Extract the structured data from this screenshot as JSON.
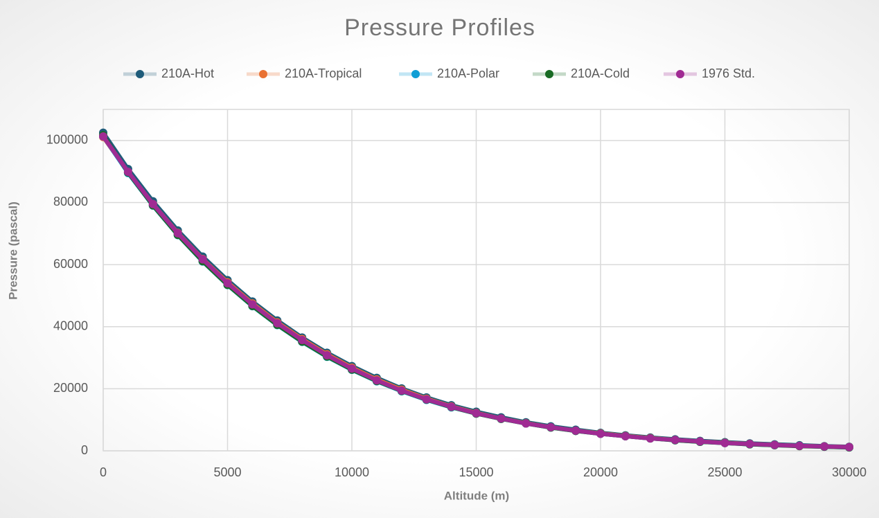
{
  "chart_data": {
    "type": "line",
    "title": "Pressure Profiles",
    "x_label": "Altitude (m)",
    "y_label": "Pressure (pascal)",
    "x": [
      0,
      1000,
      2000,
      3000,
      4000,
      5000,
      6000,
      7000,
      8000,
      9000,
      10000,
      11000,
      12000,
      13000,
      14000,
      15000,
      16000,
      17000,
      18000,
      19000,
      20000,
      21000,
      22000,
      23000,
      24000,
      25000,
      26000,
      27000,
      28000,
      29000,
      30000
    ],
    "series": [
      {
        "name": "210A-Hot",
        "color": "#1f5c7a",
        "values": [
          102500,
          90800,
          80400,
          71000,
          62600,
          55000,
          48100,
          42000,
          36500,
          31600,
          27300,
          23500,
          20100,
          17200,
          14700,
          12600,
          10800,
          9200,
          7900,
          6800,
          5800,
          5000,
          4300,
          3700,
          3200,
          2800,
          2400,
          2100,
          1800,
          1500,
          1300
        ]
      },
      {
        "name": "210A-Tropical",
        "color": "#e97132",
        "values": [
          101100,
          89800,
          79500,
          70200,
          61800,
          54300,
          47500,
          41400,
          36000,
          31100,
          26800,
          23000,
          19700,
          16800,
          14300,
          12200,
          10400,
          8900,
          7600,
          6500,
          5600,
          4800,
          4100,
          3500,
          3000,
          2600,
          2200,
          1900,
          1600,
          1400,
          1200
        ]
      },
      {
        "name": "210A-Polar",
        "color": "#0f9ed5",
        "values": [
          101300,
          89500,
          79000,
          69500,
          61000,
          53400,
          46600,
          40500,
          35100,
          30300,
          26100,
          22400,
          19200,
          16400,
          14000,
          12000,
          10300,
          8800,
          7500,
          6400,
          5500,
          4700,
          4000,
          3400,
          2900,
          2500,
          2100,
          1800,
          1600,
          1300,
          1100
        ]
      },
      {
        "name": "210A-Cold",
        "color": "#196b24",
        "values": [
          101700,
          89700,
          79100,
          69600,
          61100,
          53500,
          46700,
          40600,
          35200,
          30400,
          26200,
          22500,
          19300,
          16500,
          14100,
          12000,
          10300,
          8800,
          7500,
          6400,
          5500,
          4700,
          4000,
          3400,
          2900,
          2500,
          2100,
          1800,
          1500,
          1300,
          1100
        ]
      },
      {
        "name": "1976 Std.",
        "color": "#a02b93",
        "values": [
          101300,
          89900,
          79500,
          70100,
          61700,
          54000,
          47200,
          41100,
          35700,
          30800,
          26500,
          22700,
          19400,
          16600,
          14200,
          12100,
          10400,
          8800,
          7600,
          6500,
          5500,
          4700,
          4000,
          3500,
          3000,
          2500,
          2200,
          1900,
          1600,
          1400,
          1200
        ]
      }
    ],
    "xlim": [
      0,
      30000
    ],
    "xticks": [
      0,
      5000,
      10000,
      15000,
      20000,
      25000,
      30000
    ],
    "ylim": [
      0,
      110000
    ],
    "yticks": [
      0,
      20000,
      40000,
      60000,
      80000,
      100000
    ],
    "grid": true,
    "legend": "top"
  }
}
